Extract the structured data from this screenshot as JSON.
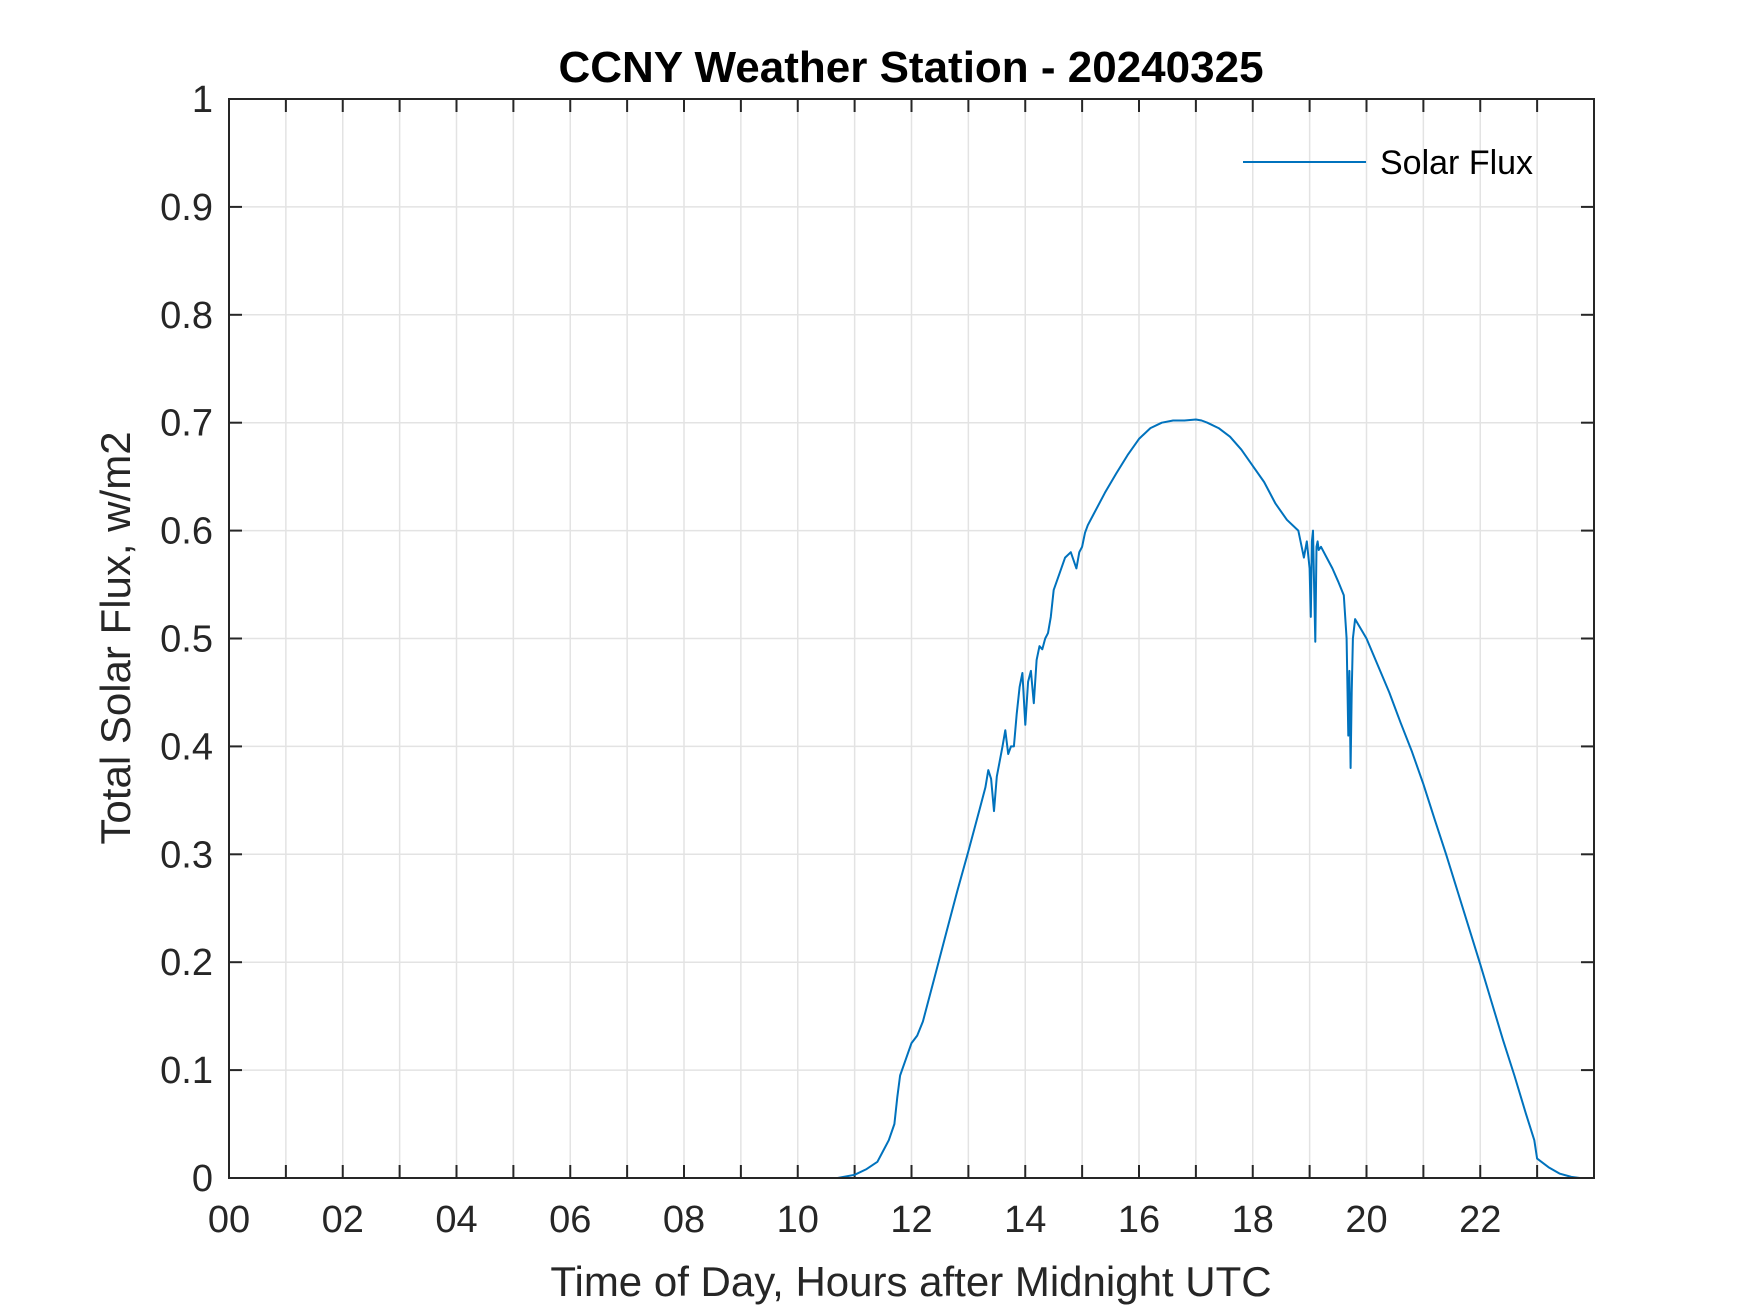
{
  "chart_data": {
    "type": "line",
    "title": "CCNY Weather Station - 20240325",
    "xlabel": "Time of Day, Hours after Midnight UTC",
    "ylabel": "Total Solar Flux, w/m2",
    "xlim": [
      0,
      24
    ],
    "ylim": [
      0,
      1
    ],
    "x_tick_values": [
      0,
      2,
      4,
      6,
      8,
      10,
      12,
      14,
      16,
      18,
      20,
      22
    ],
    "x_tick_labels": [
      "00",
      "02",
      "04",
      "06",
      "08",
      "10",
      "12",
      "14",
      "16",
      "18",
      "20",
      "22"
    ],
    "x_minor_step": 1,
    "y_tick_values": [
      0,
      0.1,
      0.2,
      0.3,
      0.4,
      0.5,
      0.6,
      0.7,
      0.8,
      0.9,
      1
    ],
    "y_tick_labels": [
      "0",
      "0.1",
      "0.2",
      "0.3",
      "0.4",
      "0.5",
      "0.6",
      "0.7",
      "0.8",
      "0.9",
      "1"
    ],
    "grid": true,
    "legend_position": "top-right",
    "series": [
      {
        "name": "Solar Flux",
        "color": "#0072BD",
        "x": [
          0,
          10.7,
          11.0,
          11.2,
          11.4,
          11.5,
          11.6,
          11.7,
          11.75,
          11.8,
          11.9,
          12.0,
          12.1,
          12.2,
          12.4,
          12.6,
          12.8,
          13.0,
          13.2,
          13.3,
          13.35,
          13.4,
          13.45,
          13.5,
          13.6,
          13.65,
          13.7,
          13.75,
          13.8,
          13.85,
          13.9,
          13.95,
          14.0,
          14.05,
          14.1,
          14.15,
          14.2,
          14.25,
          14.3,
          14.35,
          14.4,
          14.45,
          14.5,
          14.6,
          14.7,
          14.8,
          14.9,
          14.95,
          15.0,
          15.05,
          15.1,
          15.2,
          15.4,
          15.6,
          15.8,
          16.0,
          16.2,
          16.4,
          16.6,
          16.8,
          17.0,
          17.1,
          17.2,
          17.4,
          17.6,
          17.8,
          18.0,
          18.2,
          18.4,
          18.6,
          18.8,
          18.9,
          18.95,
          19.0,
          19.02,
          19.04,
          19.06,
          19.08,
          19.1,
          19.12,
          19.14,
          19.16,
          19.2,
          19.3,
          19.4,
          19.5,
          19.6,
          19.65,
          19.68,
          19.7,
          19.72,
          19.74,
          19.76,
          19.8,
          20.0,
          20.2,
          20.4,
          20.6,
          20.8,
          21.0,
          21.2,
          21.4,
          21.6,
          21.8,
          22.0,
          22.2,
          22.4,
          22.6,
          22.8,
          22.95,
          23.0,
          23.2,
          23.4,
          23.6,
          23.75,
          23.9
        ],
        "y": [
          0,
          0,
          0.003,
          0.008,
          0.015,
          0.025,
          0.035,
          0.05,
          0.075,
          0.095,
          0.11,
          0.125,
          0.132,
          0.145,
          0.185,
          0.225,
          0.265,
          0.303,
          0.342,
          0.362,
          0.378,
          0.37,
          0.34,
          0.372,
          0.4,
          0.415,
          0.393,
          0.4,
          0.4,
          0.43,
          0.455,
          0.468,
          0.42,
          0.46,
          0.47,
          0.44,
          0.48,
          0.493,
          0.49,
          0.5,
          0.505,
          0.52,
          0.545,
          0.56,
          0.575,
          0.58,
          0.565,
          0.58,
          0.585,
          0.598,
          0.605,
          0.615,
          0.635,
          0.653,
          0.67,
          0.685,
          0.695,
          0.7,
          0.702,
          0.702,
          0.703,
          0.702,
          0.7,
          0.695,
          0.687,
          0.675,
          0.66,
          0.645,
          0.625,
          0.61,
          0.6,
          0.575,
          0.59,
          0.565,
          0.52,
          0.59,
          0.6,
          0.545,
          0.497,
          0.585,
          0.59,
          0.582,
          0.585,
          0.575,
          0.565,
          0.553,
          0.54,
          0.5,
          0.41,
          0.47,
          0.38,
          0.45,
          0.5,
          0.518,
          0.5,
          0.475,
          0.45,
          0.422,
          0.395,
          0.365,
          0.332,
          0.3,
          0.266,
          0.232,
          0.198,
          0.163,
          0.128,
          0.095,
          0.06,
          0.035,
          0.018,
          0.01,
          0.004,
          0.001,
          0,
          0
        ]
      }
    ]
  }
}
